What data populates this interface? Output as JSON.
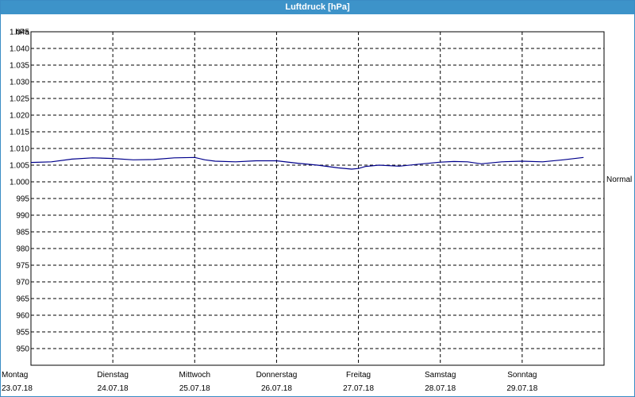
{
  "window": {
    "title": "Luftdruck [hPa]"
  },
  "chart_data": {
    "type": "line",
    "title": "Luftdruck [hPa]",
    "ylabel": "hPa",
    "ylim": [
      950,
      1050
    ],
    "xlim": [
      "2018-07-23T00:00",
      "2018-07-30T00:00"
    ],
    "y_ticks": [
      "1.045",
      "1.040",
      "1.035",
      "1.030",
      "1.025",
      "1.020",
      "1.015",
      "1.010",
      "1.005",
      "1.000",
      "995",
      "990",
      "985",
      "980",
      "975",
      "970",
      "965",
      "960",
      "955",
      "950"
    ],
    "x_days": [
      {
        "weekday": "Montag",
        "date": "23.07.18"
      },
      {
        "weekday": "Dienstag",
        "date": "24.07.18"
      },
      {
        "weekday": "Mittwoch",
        "date": "25.07.18"
      },
      {
        "weekday": "Donnerstag",
        "date": "26.07.18"
      },
      {
        "weekday": "Freitag",
        "date": "27.07.18"
      },
      {
        "weekday": "Samstag",
        "date": "28.07.18"
      },
      {
        "weekday": "Sonntag",
        "date": "29.07.18"
      }
    ],
    "reference_label": "Normal",
    "reference_value": 1006,
    "grid": true,
    "series": [
      {
        "color": "#00008b",
        "points": [
          [
            "2018-07-23T00:00",
            1010.8
          ],
          [
            "2018-07-23T06:00",
            1011.0
          ],
          [
            "2018-07-23T12:00",
            1011.8
          ],
          [
            "2018-07-23T18:00",
            1012.2
          ],
          [
            "2018-07-24T00:00",
            1012.0
          ],
          [
            "2018-07-24T06:00",
            1011.6
          ],
          [
            "2018-07-24T12:00",
            1011.7
          ],
          [
            "2018-07-24T18:00",
            1012.2
          ],
          [
            "2018-07-25T00:00",
            1012.3
          ],
          [
            "2018-07-25T03:00",
            1011.6
          ],
          [
            "2018-07-25T06:00",
            1011.2
          ],
          [
            "2018-07-25T12:00",
            1011.0
          ],
          [
            "2018-07-25T18:00",
            1011.3
          ],
          [
            "2018-07-26T00:00",
            1011.3
          ],
          [
            "2018-07-26T06:00",
            1010.6
          ],
          [
            "2018-07-26T12:00",
            1010.0
          ],
          [
            "2018-07-26T18:00",
            1009.2
          ],
          [
            "2018-07-26T22:00",
            1008.8
          ],
          [
            "2018-07-27T00:00",
            1009.0
          ],
          [
            "2018-07-27T02:00",
            1009.6
          ],
          [
            "2018-07-27T06:00",
            1010.0
          ],
          [
            "2018-07-27T12:00",
            1009.7
          ],
          [
            "2018-07-27T18:00",
            1010.3
          ],
          [
            "2018-07-28T00:00",
            1010.9
          ],
          [
            "2018-07-28T04:00",
            1011.1
          ],
          [
            "2018-07-28T08:00",
            1011.0
          ],
          [
            "2018-07-28T12:00",
            1010.4
          ],
          [
            "2018-07-28T18:00",
            1011.0
          ],
          [
            "2018-07-29T00:00",
            1011.2
          ],
          [
            "2018-07-29T06:00",
            1011.0
          ],
          [
            "2018-07-29T12:00",
            1011.6
          ],
          [
            "2018-07-29T18:00",
            1012.3
          ]
        ]
      }
    ]
  }
}
